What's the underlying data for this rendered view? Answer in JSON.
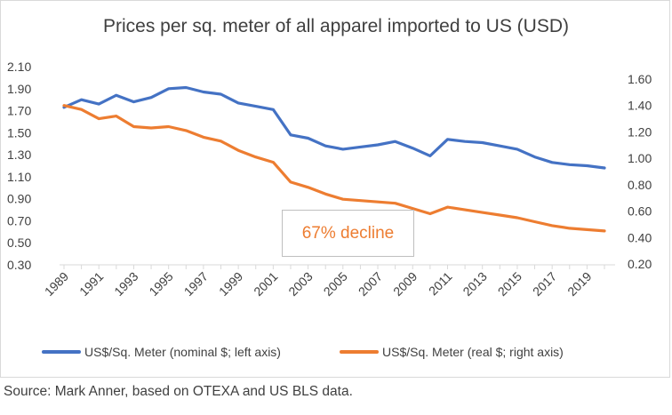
{
  "chart_data": {
    "type": "line",
    "title": "Prices per sq. meter of all apparel imported to US (USD)",
    "xlabel": "",
    "ylabel": "",
    "x": [
      1989,
      1990,
      1991,
      1992,
      1993,
      1994,
      1995,
      1996,
      1997,
      1998,
      1999,
      2000,
      2001,
      2002,
      2003,
      2004,
      2005,
      2006,
      2007,
      2008,
      2009,
      2010,
      2011,
      2012,
      2013,
      2014,
      2015,
      2016,
      2017,
      2018,
      2019,
      2020
    ],
    "x_tick_labels": [
      "1989",
      "1991",
      "1993",
      "1995",
      "1997",
      "1999",
      "2001",
      "2003",
      "2005",
      "2007",
      "2009",
      "2011",
      "2013",
      "2015",
      "2017",
      "2019"
    ],
    "left_axis": {
      "ylim": [
        0.3,
        2.1
      ],
      "tick_labels": [
        "2.10",
        "1.90",
        "1.70",
        "1.50",
        "1.30",
        "1.10",
        "0.90",
        "0.70",
        "0.50",
        "0.30"
      ]
    },
    "right_axis": {
      "ylim": [
        0.2,
        1.6
      ],
      "tick_labels": [
        "1.60",
        "1.40",
        "1.20",
        "1.00",
        "0.80",
        "0.60",
        "0.40",
        "0.20"
      ]
    },
    "series": [
      {
        "name": "US$/Sq. Meter (nominal $; left axis)",
        "axis": "left",
        "color": "#4472c4",
        "values": [
          1.73,
          1.8,
          1.76,
          1.84,
          1.78,
          1.82,
          1.9,
          1.91,
          1.87,
          1.85,
          1.77,
          1.74,
          1.71,
          1.48,
          1.45,
          1.38,
          1.35,
          1.37,
          1.39,
          1.42,
          1.36,
          1.29,
          1.44,
          1.42,
          1.41,
          1.38,
          1.35,
          1.28,
          1.23,
          1.21,
          1.2,
          1.18
        ]
      },
      {
        "name": "US$/Sq. Meter (real $; right axis)",
        "axis": "right",
        "color": "#ed7d31",
        "values": [
          1.4,
          1.37,
          1.3,
          1.32,
          1.24,
          1.23,
          1.24,
          1.21,
          1.16,
          1.13,
          1.06,
          1.01,
          0.97,
          0.82,
          0.78,
          0.73,
          0.69,
          0.68,
          0.67,
          0.66,
          0.62,
          0.58,
          0.63,
          0.61,
          0.59,
          0.57,
          0.55,
          0.52,
          0.49,
          0.47,
          0.46,
          0.45
        ]
      }
    ],
    "grid": false,
    "legend_position": "bottom",
    "annotation": "67% decline"
  },
  "source_note": "Source: Mark Anner, based on OTEXA and US BLS data."
}
